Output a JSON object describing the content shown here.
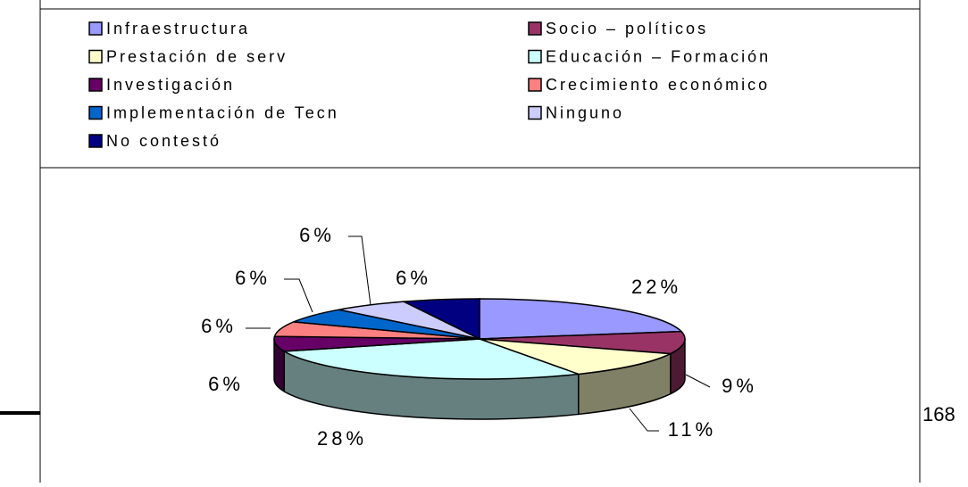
{
  "chart_data": {
    "type": "pie3d",
    "categories": [
      "Infraestructura",
      "Socio – políticos",
      "Prestación de serv",
      "Educación – Formación",
      "Investigación",
      "Crecimiento económico",
      "Implementación de Tecn",
      "Ninguno",
      "No contestó"
    ],
    "values": [
      22,
      9,
      11,
      28,
      6,
      6,
      6,
      6,
      6
    ],
    "value_labels": [
      "22%",
      "9%",
      "11%",
      "28%",
      "6%",
      "6%",
      "6%",
      "6%",
      "6%"
    ],
    "colors": [
      "#9999ff",
      "#993366",
      "#ffffcc",
      "#ccffff",
      "#660066",
      "#ff8080",
      "#0066cc",
      "#ccccff",
      "#000080"
    ]
  },
  "page_number": "168"
}
